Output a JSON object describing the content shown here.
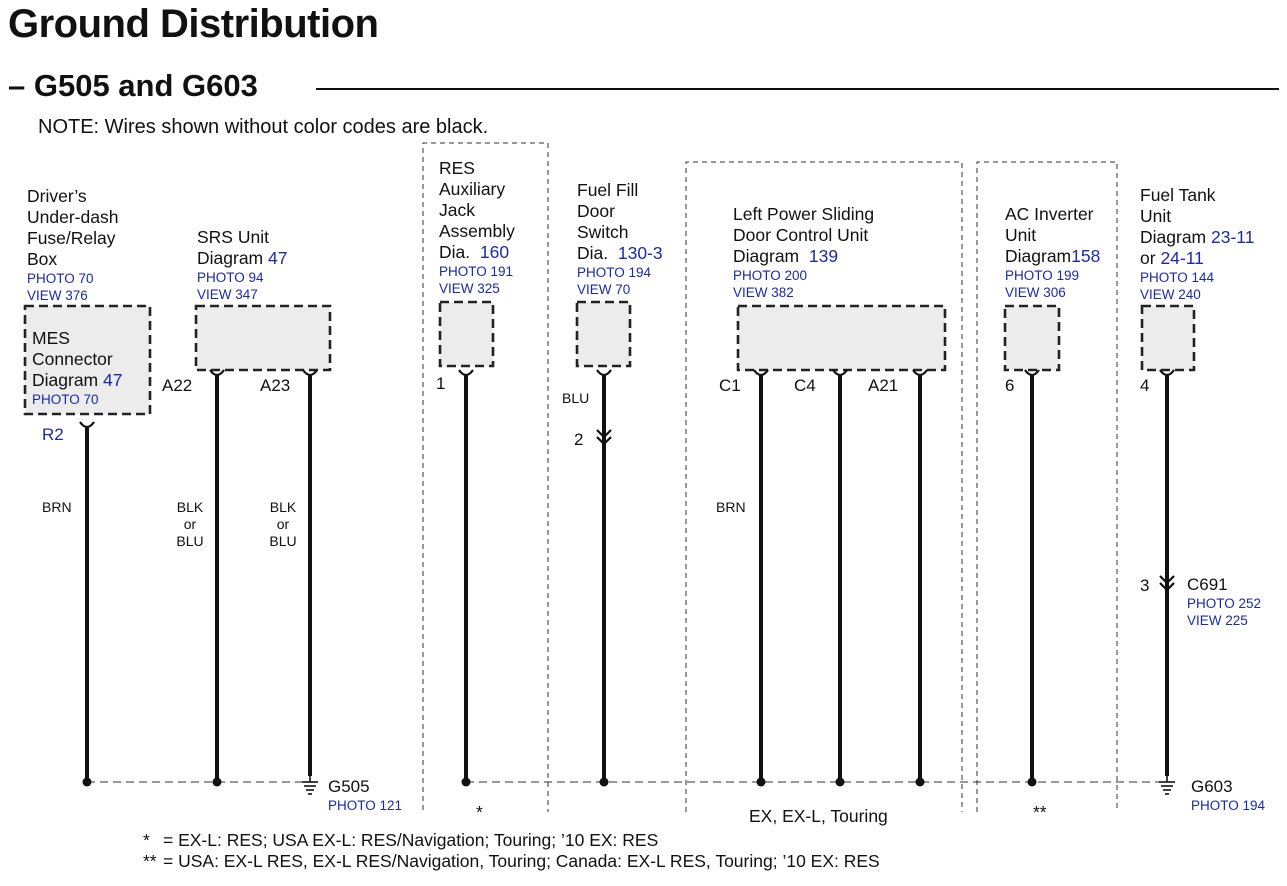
{
  "title": "Ground Distribution",
  "subtitle": "G505 and G603",
  "note": "NOTE: Wires shown without color codes are black.",
  "components": {
    "fuse_box": {
      "name": [
        "Driver’s",
        "Under-dash",
        "Fuse/Relay",
        "Box"
      ],
      "photo": "PHOTO 70",
      "view": "VIEW 376"
    },
    "mes": {
      "name": [
        "MES",
        "Connector"
      ],
      "diagram": "Diagram",
      "diagram_ref": "47",
      "photo": "PHOTO 70",
      "pin": "R2",
      "wire": "BRN"
    },
    "srs": {
      "name": "SRS Unit",
      "diagram": "Diagram",
      "diagram_ref": "47",
      "photo": "PHOTO 94",
      "view": "VIEW 347",
      "pins": [
        "A22",
        "A23"
      ],
      "wire": [
        "BLK",
        "or",
        "BLU"
      ]
    },
    "res": {
      "name": [
        "RES",
        "Auxiliary",
        "Jack",
        "Assembly"
      ],
      "diagram": "Dia.",
      "diagram_ref": "160",
      "photo": "PHOTO 191",
      "view": "VIEW 325",
      "pin": "1",
      "mark": "*"
    },
    "fuel_door": {
      "name": [
        "Fuel Fill",
        "Door",
        "Switch"
      ],
      "diagram": "Dia.",
      "diagram_ref": "130-3",
      "photo": "PHOTO 194",
      "view": "VIEW 70",
      "wire": "BLU",
      "pin": "2"
    },
    "sliding_door": {
      "name": [
        "Left Power Sliding",
        "Door Control Unit"
      ],
      "diagram": "Diagram",
      "diagram_ref": "139",
      "photo": "PHOTO 200",
      "view": "VIEW 382",
      "pins": [
        "C1",
        "C4",
        "A21"
      ],
      "wire": "BRN",
      "variant": "EX, EX-L, Touring"
    },
    "ac_inverter": {
      "name": [
        "AC Inverter",
        "Unit"
      ],
      "diagram": "Diagram",
      "diagram_ref": "158",
      "photo": "PHOTO 199",
      "view": "VIEW 306",
      "pin": "6",
      "mark": "**"
    },
    "fuel_tank": {
      "name": [
        "Fuel Tank",
        "Unit"
      ],
      "diagram": "Diagram",
      "diagram_ref": "23-11",
      "or": "or",
      "diagram_ref2": "24-11",
      "photo": "PHOTO 144",
      "view": "VIEW 240",
      "pin": "4",
      "connector_pin": "3",
      "connector": "C691",
      "connector_photo": "PHOTO 252",
      "connector_view": "VIEW 225"
    }
  },
  "grounds": {
    "g505": {
      "name": "G505",
      "photo": "PHOTO 121"
    },
    "g603": {
      "name": "G603",
      "photo": "PHOTO 194"
    }
  },
  "footnotes": [
    {
      "mark": "*",
      "text": "= EX-L: RES; USA EX-L: RES/Navigation; Touring; ’10 EX: RES"
    },
    {
      "mark": "**",
      "text": "= USA: EX-L RES, EX-L RES/Navigation, Touring; Canada: EX-L RES, Touring; ’10 EX: RES"
    }
  ],
  "colors": {
    "link": "#1a2aa8",
    "box_fill": "#ececec",
    "line": "#111111"
  }
}
